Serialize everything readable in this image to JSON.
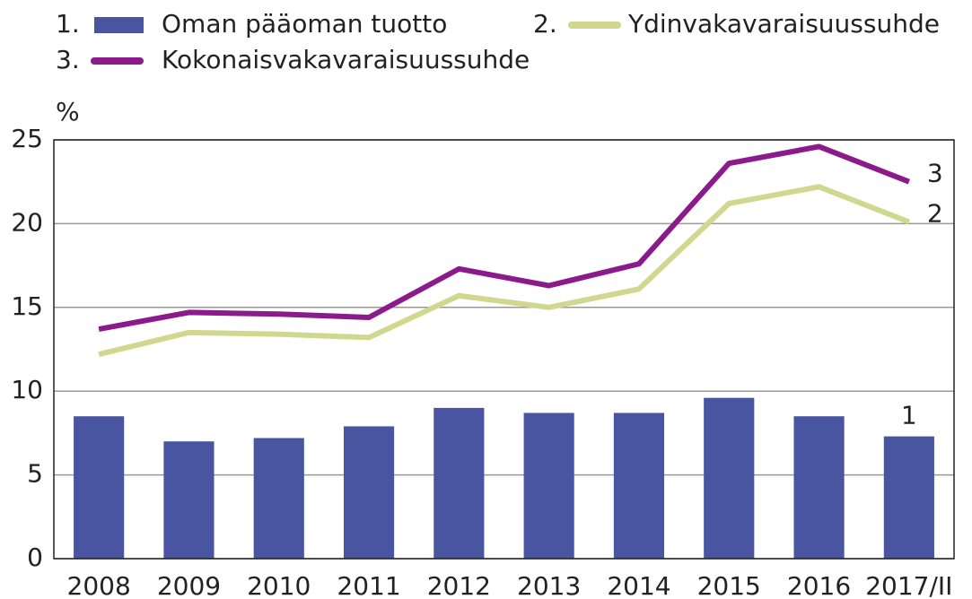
{
  "chart_data": {
    "type": "combo",
    "y_label": "%",
    "categories": [
      "2008",
      "2009",
      "2010",
      "2011",
      "2012",
      "2013",
      "2014",
      "2015",
      "2016",
      "2017/II"
    ],
    "series": [
      {
        "legend_label": "1.",
        "name": "Oman pääoman tuotto",
        "end_label": "1",
        "type": "bar",
        "color": "#4a55a2",
        "values": [
          8.5,
          7.0,
          7.2,
          7.9,
          9.0,
          8.7,
          8.7,
          9.6,
          8.5,
          7.3
        ]
      },
      {
        "legend_label": "2.",
        "name": "Ydinvakavaraisuussuhde",
        "end_label": "2",
        "type": "line",
        "color": "#d1d78e",
        "values": [
          12.2,
          13.5,
          13.4,
          13.2,
          15.7,
          15.0,
          16.1,
          21.2,
          22.2,
          20.1
        ]
      },
      {
        "legend_label": "3.",
        "name": "Kokonaisvakavaraisuussuhde",
        "end_label": "3",
        "type": "line",
        "color": "#8b1a8a",
        "values": [
          13.7,
          14.7,
          14.6,
          14.4,
          17.3,
          16.3,
          17.6,
          23.6,
          24.6,
          22.5
        ]
      }
    ],
    "ylim": [
      0,
      25
    ],
    "yticks": [
      0,
      5,
      10,
      15,
      20,
      25
    ],
    "grid": true
  }
}
